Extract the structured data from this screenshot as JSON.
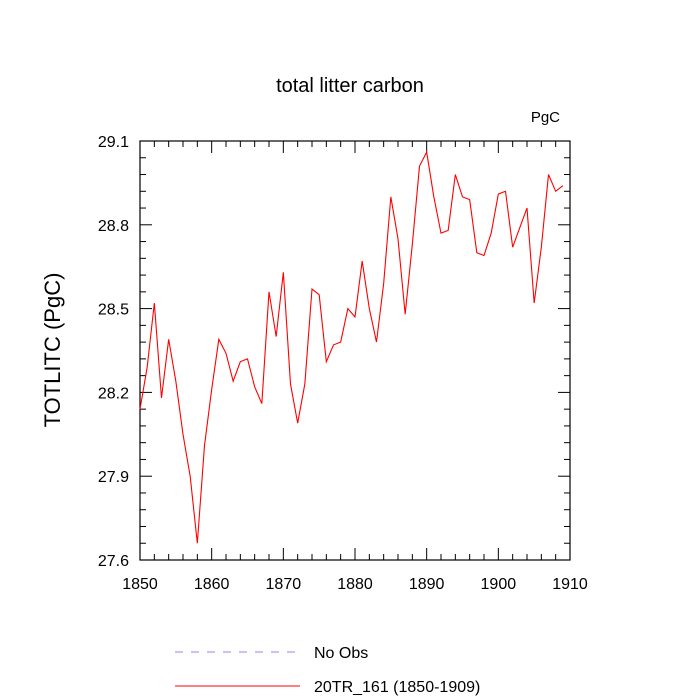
{
  "chart_data": {
    "type": "line",
    "title": "total litter carbon",
    "units": "PgC",
    "xlabel": "",
    "ylabel": "TOTLITC  (PgC)",
    "xlim": [
      1850,
      1910
    ],
    "ylim": [
      27.6,
      29.1
    ],
    "xticks": [
      1850,
      1860,
      1870,
      1880,
      1890,
      1900,
      1910
    ],
    "xtick_labels": [
      "1850",
      "1860",
      "1870",
      "1880",
      "1890",
      "1900",
      "1910"
    ],
    "yticks": [
      27.6,
      27.9,
      28.2,
      28.5,
      28.8,
      29.1
    ],
    "ytick_labels": [
      "27.6",
      "27.9",
      "28.2",
      "28.5",
      "28.8",
      "29.1"
    ],
    "grid": false,
    "legend_position": "bottom",
    "series": [
      {
        "name": "No Obs",
        "color": "#8888ff",
        "style": "dashed",
        "x": [],
        "values": []
      },
      {
        "name": "20TR_161 (1850-1909)",
        "color": "#ff0000",
        "style": "solid",
        "x": [
          1850,
          1851,
          1852,
          1853,
          1854,
          1855,
          1856,
          1857,
          1858,
          1859,
          1860,
          1861,
          1862,
          1863,
          1864,
          1865,
          1866,
          1867,
          1868,
          1869,
          1870,
          1871,
          1872,
          1873,
          1874,
          1875,
          1876,
          1877,
          1878,
          1879,
          1880,
          1881,
          1882,
          1883,
          1884,
          1885,
          1886,
          1887,
          1888,
          1889,
          1890,
          1891,
          1892,
          1893,
          1894,
          1895,
          1896,
          1897,
          1898,
          1899,
          1900,
          1901,
          1902,
          1903,
          1904,
          1905,
          1906,
          1907,
          1908,
          1909
        ],
        "values": [
          28.14,
          28.29,
          28.52,
          28.18,
          28.39,
          28.24,
          28.05,
          27.9,
          27.66,
          28.01,
          28.21,
          28.39,
          28.34,
          28.24,
          28.31,
          28.32,
          28.22,
          28.16,
          28.56,
          28.4,
          28.63,
          28.23,
          28.09,
          28.23,
          28.57,
          28.55,
          28.31,
          28.37,
          28.38,
          28.5,
          28.47,
          28.67,
          28.5,
          28.38,
          28.59,
          28.9,
          28.75,
          28.48,
          28.73,
          29.01,
          29.06,
          28.9,
          28.77,
          28.78,
          28.98,
          28.9,
          28.89,
          28.7,
          28.69,
          28.77,
          28.91,
          28.92,
          28.72,
          28.79,
          28.86,
          28.52,
          28.72,
          28.98,
          28.92,
          28.94
        ]
      }
    ]
  }
}
